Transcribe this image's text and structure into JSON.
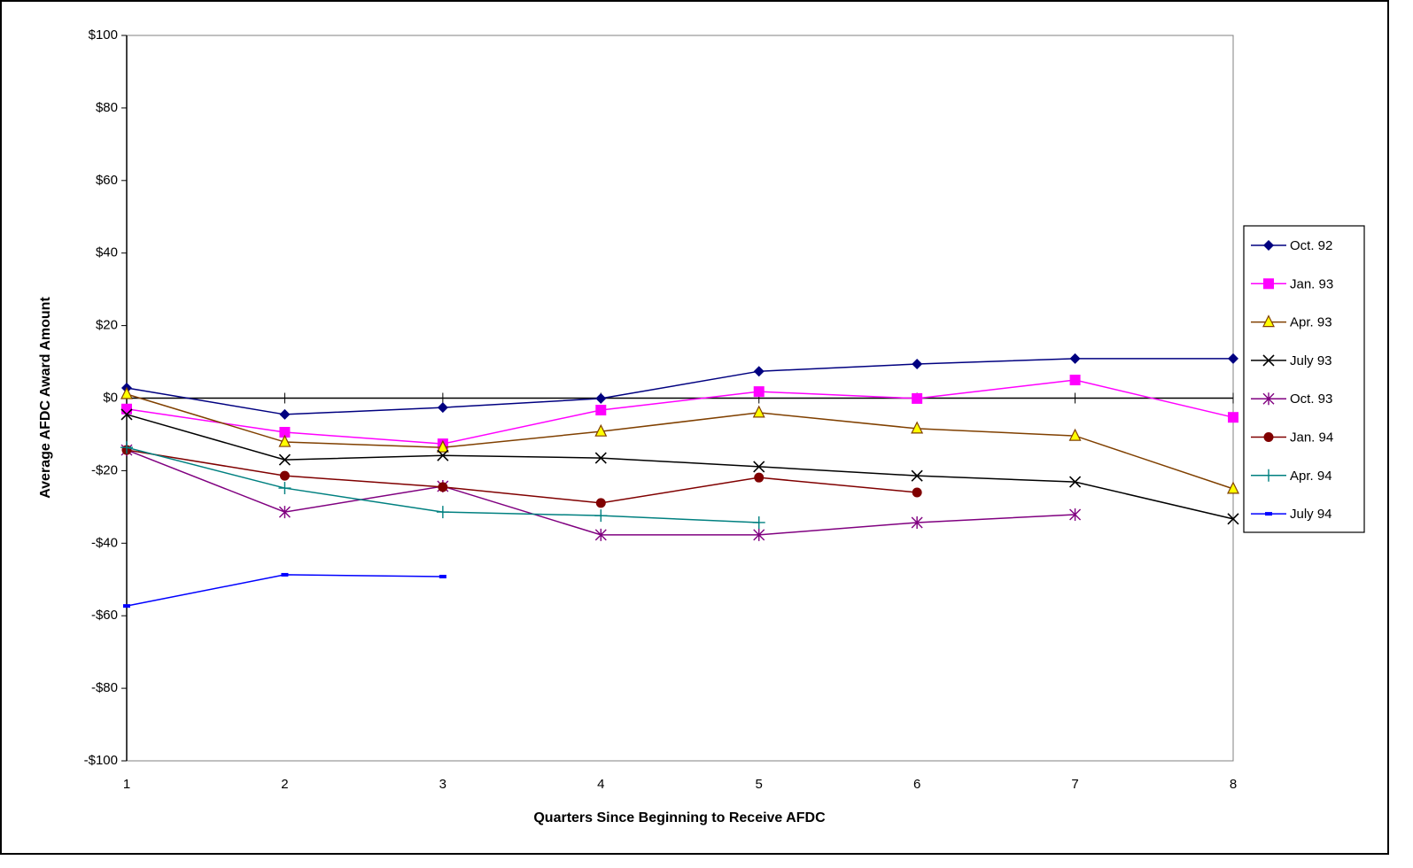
{
  "chart_data": {
    "type": "line",
    "x_label": "Quarters Since Beginning to Receive AFDC",
    "y_label": "Average AFDC Award Amount",
    "x": [
      1,
      2,
      3,
      4,
      5,
      6,
      7,
      8
    ],
    "xlim": [
      1,
      8
    ],
    "xticks": [
      1,
      2,
      3,
      4,
      5,
      6,
      7,
      8
    ],
    "ylim": [
      -100,
      100
    ],
    "yticks": [
      {
        "value": -100,
        "label": "-$100"
      },
      {
        "value": -80,
        "label": "-$80"
      },
      {
        "value": -60,
        "label": "-$60"
      },
      {
        "value": -40,
        "label": "-$40"
      },
      {
        "value": -20,
        "label": "-$20"
      },
      {
        "value": 0,
        "label": "$0"
      },
      {
        "value": 20,
        "label": "$20"
      },
      {
        "value": 40,
        "label": "$40"
      },
      {
        "value": 60,
        "label": "$60"
      },
      {
        "value": 80,
        "label": "$80"
      },
      {
        "value": 100,
        "label": "$100"
      }
    ],
    "legend": "right",
    "series": [
      {
        "name": "Oct. 92",
        "color": "#000080",
        "marker": "diamond",
        "values": [
          2.8,
          -4.5,
          -2.6,
          -0.1,
          7.4,
          9.4,
          10.9,
          10.9
        ]
      },
      {
        "name": "Jan. 93",
        "color": "#ff00ff",
        "marker": "square",
        "values": [
          -3.0,
          -9.4,
          -12.6,
          -3.3,
          1.8,
          -0.1,
          5.0,
          -5.3
        ]
      },
      {
        "name": "Apr. 93",
        "color": "#804000",
        "marker": "triangle",
        "marker_fill": "#ffff00",
        "values": [
          1.1,
          -12.1,
          -13.6,
          -9.2,
          -4.0,
          -8.4,
          -10.4,
          -25.0
        ]
      },
      {
        "name": "July 93",
        "color": "#000000",
        "marker": "x",
        "values": [
          -4.5,
          -17.0,
          -15.8,
          -16.5,
          -18.9,
          -21.4,
          -23.1,
          -33.3
        ]
      },
      {
        "name": "Oct. 93",
        "color": "#800080",
        "marker": "star",
        "values": [
          -14.3,
          -31.4,
          -24.3,
          -37.7,
          -37.7,
          -34.3,
          -32.1,
          null
        ]
      },
      {
        "name": "Jan. 94",
        "color": "#800000",
        "marker": "circle",
        "values": [
          -14.3,
          -21.4,
          -24.5,
          -28.9,
          -21.9,
          -26.0,
          null,
          null
        ]
      },
      {
        "name": "Apr. 94",
        "color": "#008080",
        "marker": "plus",
        "values": [
          -13.6,
          -24.8,
          -31.4,
          -32.4,
          -34.3,
          null,
          null,
          null
        ]
      },
      {
        "name": "July 94",
        "color": "#0000ff",
        "marker": "dash",
        "values": [
          -57.3,
          -48.7,
          -49.2,
          null,
          null,
          null,
          null,
          null
        ]
      }
    ]
  }
}
